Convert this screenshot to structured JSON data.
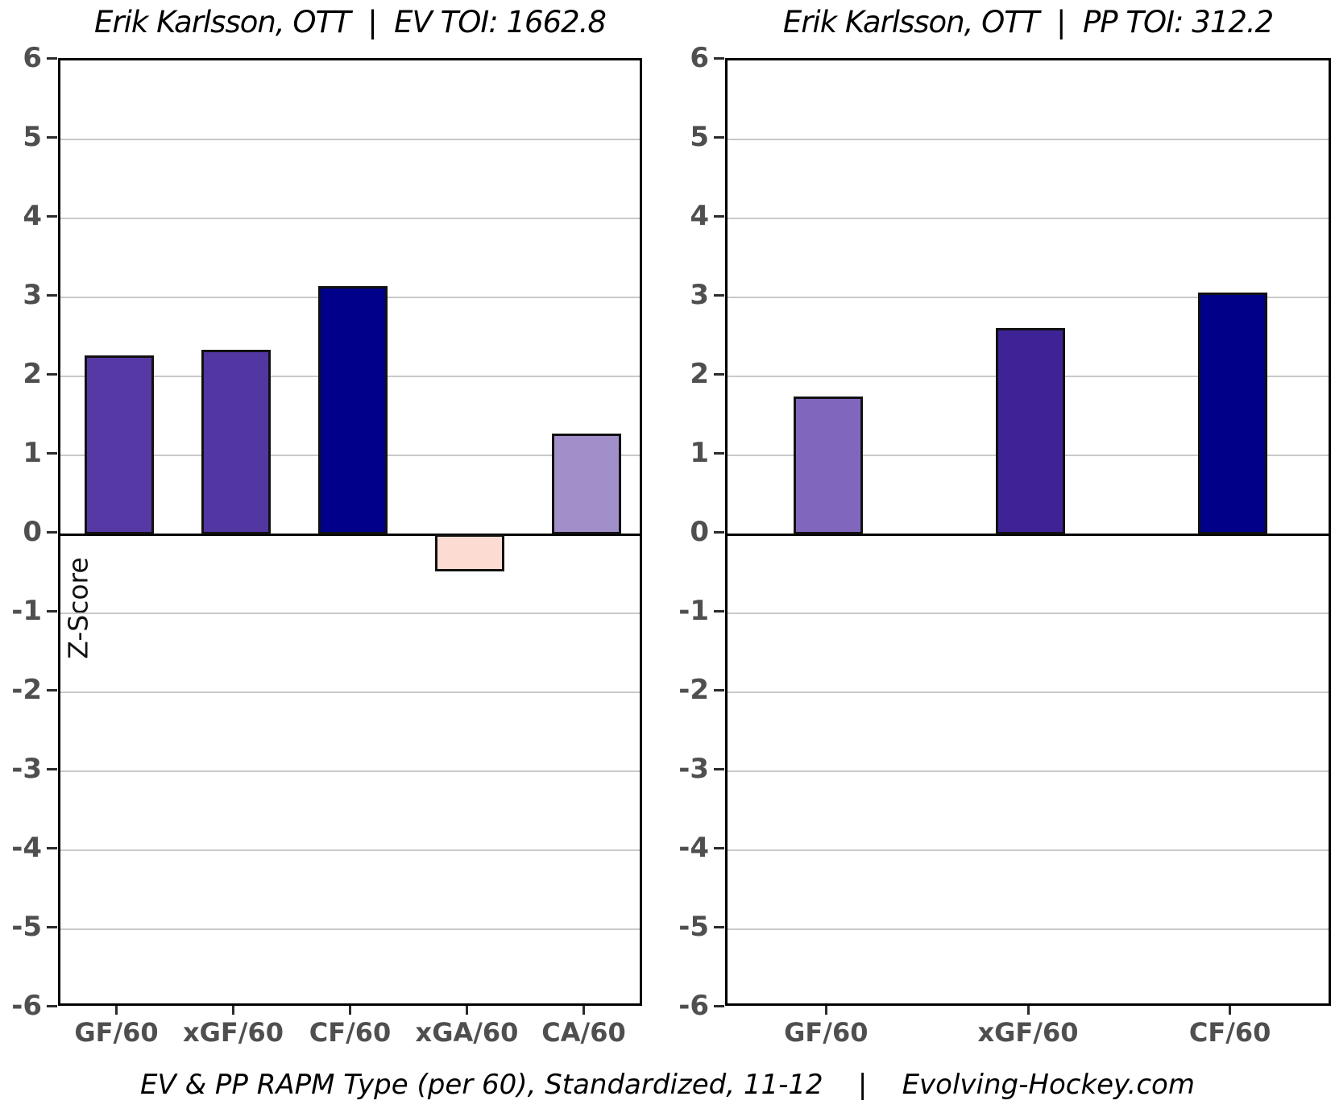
{
  "page": {
    "background": "#ffffff"
  },
  "y_axis": {
    "label": "Z-Score",
    "min": -6,
    "max": 6,
    "tick_step": 1,
    "tick_labels": [
      "6",
      "5",
      "4",
      "3",
      "2",
      "1",
      "0",
      "-1",
      "-2",
      "-3",
      "-4",
      "-5",
      "-6"
    ]
  },
  "caption": "EV & PP RAPM Type (per 60), Standardized, 11-12    |    Evolving-Hockey.com",
  "colors": {
    "grid": "#c9c9c9",
    "zero_line": "#000000",
    "axis_border": "#000000",
    "tick_text": "#4f4f4f",
    "title_text": "#000000"
  },
  "chart_data": [
    {
      "type": "bar",
      "title": "Erik Karlsson, OTT  |  EV TOI: 1662.8",
      "categories": [
        "GF/60",
        "xGF/60",
        "CF/60",
        "xGA/60",
        "CA/60"
      ],
      "values": [
        2.27,
        2.34,
        3.14,
        -0.47,
        1.28
      ],
      "bar_colors": [
        "#5639a4",
        "#5236a2",
        "#00008b",
        "#fcdcd2",
        "#a18fc9"
      ],
      "xlabel": "",
      "ylabel": "Z-Score",
      "ylim": [
        -6,
        6
      ],
      "grid": true,
      "legend": "none"
    },
    {
      "type": "bar",
      "title": "Erik Karlsson, OTT  |  PP TOI: 312.2",
      "categories": [
        "GF/60",
        "xGF/60",
        "CF/60"
      ],
      "values": [
        1.74,
        2.61,
        3.06
      ],
      "bar_colors": [
        "#8166bd",
        "#3e2397",
        "#000089"
      ],
      "xlabel": "",
      "ylabel": "",
      "ylim": [
        -6,
        6
      ],
      "grid": true,
      "legend": "none"
    }
  ]
}
